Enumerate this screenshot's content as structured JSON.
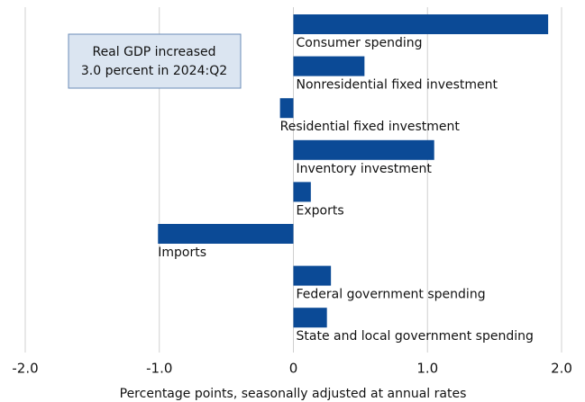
{
  "chart_data": {
    "type": "hbar",
    "x_label": "Percentage points, seasonally adjusted at annual rates",
    "annotation": [
      "Real GDP increased",
      "3.0 percent in 2024:Q2"
    ],
    "categories": [
      "Consumer spending",
      "Nonresidential fixed investment",
      "Residential fixed investment",
      "Inventory investment",
      "Exports",
      "Imports",
      "Federal government spending",
      "State and local government spending"
    ],
    "values": [
      1.9,
      0.53,
      -0.1,
      1.05,
      0.13,
      -1.01,
      0.28,
      0.25
    ],
    "color": "#0b4a96",
    "xlim": [
      -2,
      2
    ],
    "xticks": [
      {
        "value": -2,
        "label": "-2.0"
      },
      {
        "value": -1,
        "label": "-1.0"
      },
      0,
      {
        "value": 1,
        "label": "1.0"
      },
      {
        "value": 2,
        "label": "2.0"
      }
    ],
    "grid": true
  }
}
